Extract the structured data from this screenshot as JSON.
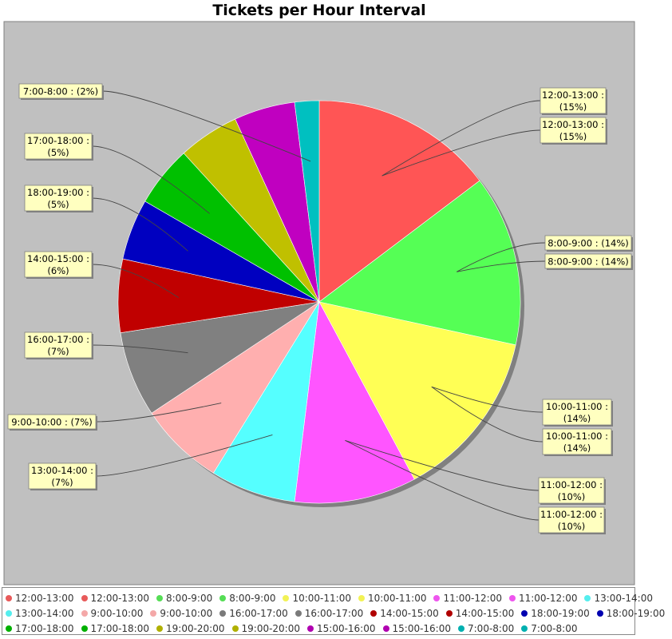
{
  "chart_data": {
    "type": "pie",
    "title": "Tickets per Hour Interval",
    "slices": [
      {
        "label": "12:00-13:00",
        "value": 15,
        "color": "#ff5555"
      },
      {
        "label": "8:00-9:00",
        "value": 14,
        "color": "#55ff55"
      },
      {
        "label": "10:00-11:00",
        "value": 14,
        "color": "#ffff55"
      },
      {
        "label": "11:00-12:00",
        "value": 10,
        "color": "#ff55ff"
      },
      {
        "label": "13:00-14:00",
        "value": 7,
        "color": "#55ffff"
      },
      {
        "label": "9:00-10:00",
        "value": 7,
        "color": "#ffafaf"
      },
      {
        "label": "16:00-17:00",
        "value": 7,
        "color": "#808080"
      },
      {
        "label": "14:00-15:00",
        "value": 6,
        "color": "#c00000"
      },
      {
        "label": "18:00-19:00",
        "value": 5,
        "color": "#0000c0"
      },
      {
        "label": "17:00-18:00",
        "value": 5,
        "color": "#00c000"
      },
      {
        "label": "19:00-20:00",
        "value": 5,
        "color": "#c0c000"
      },
      {
        "label": "15:00-16:00",
        "value": 5,
        "color": "#c000c0"
      },
      {
        "label": "7:00-8:00",
        "value": 2,
        "color": "#00c0c0"
      }
    ],
    "labels": [
      {
        "top": "12:00-13:00 :",
        "bottom": "(15%)"
      },
      {
        "top": "12:00-13:00 :",
        "bottom": "(15%)"
      },
      {
        "top": "8:00-9:00 : (14%)",
        "bottom": ""
      },
      {
        "top": "8:00-9:00 : (14%)",
        "bottom": ""
      },
      {
        "top": "10:00-11:00 :",
        "bottom": "(14%)"
      },
      {
        "top": "10:00-11:00 :",
        "bottom": "(14%)"
      },
      {
        "top": "11:00-12:00 :",
        "bottom": "(10%)"
      },
      {
        "top": "11:00-12:00 :",
        "bottom": "(10%)"
      },
      {
        "top": "13:00-14:00 :",
        "bottom": "(7%)"
      },
      {
        "top": "9:00-10:00 : (7%)",
        "bottom": ""
      },
      {
        "top": "16:00-17:00 :",
        "bottom": "(7%)"
      },
      {
        "top": "14:00-15:00 :",
        "bottom": "(6%)"
      },
      {
        "top": "18:00-19:00 :",
        "bottom": "(5%)"
      },
      {
        "top": "17:00-18:00 :",
        "bottom": "(5%)"
      },
      {
        "top": "7:00-8:00 : (2%)",
        "bottom": ""
      }
    ],
    "legend": {
      "placement": "bottom",
      "rows": [
        [
          {
            "label": "12:00-13:00",
            "color": "#e85a5a"
          },
          {
            "label": "12:00-13:00",
            "color": "#e85a5a"
          },
          {
            "label": "8:00-9:00",
            "color": "#55dd55"
          },
          {
            "label": "8:00-9:00",
            "color": "#55dd55"
          },
          {
            "label": "10:00-11:00",
            "color": "#f2f255"
          },
          {
            "label": "10:00-11:00",
            "color": "#f2f255"
          },
          {
            "label": "11:00-12:00",
            "color": "#ee55ee"
          },
          {
            "label": "11:00-12:00",
            "color": "#ee55ee"
          },
          {
            "label": "13:00-14:00",
            "color": "#55eeee"
          }
        ],
        [
          {
            "label": "13:00-14:00",
            "color": "#55eeee"
          },
          {
            "label": "9:00-10:00",
            "color": "#f4a8a8"
          },
          {
            "label": "9:00-10:00",
            "color": "#f4a8a8"
          },
          {
            "label": "16:00-17:00",
            "color": "#7a7a7a"
          },
          {
            "label": "16:00-17:00",
            "color": "#7a7a7a"
          },
          {
            "label": "14:00-15:00",
            "color": "#b00000"
          },
          {
            "label": "14:00-15:00",
            "color": "#b00000"
          },
          {
            "label": "18:00-19:00",
            "color": "#0000b0"
          },
          {
            "label": "18:00-19:00",
            "color": "#0000b0"
          }
        ],
        [
          {
            "label": "17:00-18:00",
            "color": "#00b000"
          },
          {
            "label": "17:00-18:00",
            "color": "#00b000"
          },
          {
            "label": "19:00-20:00",
            "color": "#b0b000"
          },
          {
            "label": "19:00-20:00",
            "color": "#b0b000"
          },
          {
            "label": "15:00-16:00",
            "color": "#b000b0"
          },
          {
            "label": "15:00-16:00",
            "color": "#b000b0"
          },
          {
            "label": "7:00-8:00",
            "color": "#00b0b0"
          },
          {
            "label": "7:00-8:00",
            "color": "#00b0b0"
          }
        ]
      ]
    },
    "colors": {
      "plot_background": "#c0c0c0",
      "label_background": "#ffffc0"
    }
  }
}
